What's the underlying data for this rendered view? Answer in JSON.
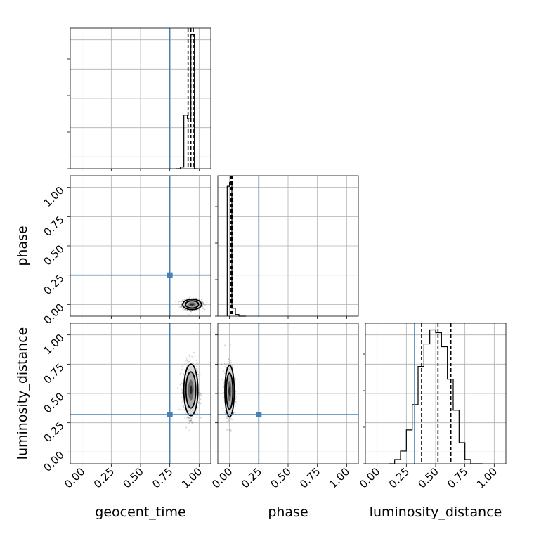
{
  "chart_data": {
    "type": "corner",
    "parameters": [
      "geocent_time",
      "phase",
      "luminosity_distance"
    ],
    "range": [
      -0.1,
      1.1
    ],
    "tick_values": [
      0.0,
      0.25,
      0.5,
      0.75,
      1.0
    ],
    "tick_labels": [
      "0.00",
      "0.25",
      "0.50",
      "0.75",
      "1.00"
    ],
    "grid": true,
    "colors": {
      "truth": "#4682b4",
      "hist": "#000000",
      "contour_fill": "#808080"
    },
    "truths": {
      "geocent_time": 0.75,
      "phase": 0.25,
      "luminosity_distance": 0.32
    },
    "diagonal": [
      {
        "parameter": "geocent_time",
        "bin_edges": [
          0.8,
          0.84,
          0.87,
          0.9,
          0.93,
          0.96,
          0.99
        ],
        "counts": [
          0,
          2,
          70,
          65,
          175,
          0
        ],
        "quantiles": [
          0.906,
          0.93,
          0.95
        ]
      },
      {
        "parameter": "phase",
        "bin_edges": [
          -0.02,
          0.0,
          0.02,
          0.05,
          0.08,
          0.14
        ],
        "counts": [
          165,
          170,
          10,
          2,
          0
        ],
        "quantiles": [
          0.013,
          0.02,
          0.027
        ]
      },
      {
        "parameter": "luminosity_distance",
        "bin_edges": [
          0.1,
          0.15,
          0.2,
          0.25,
          0.3,
          0.35,
          0.4,
          0.45,
          0.5,
          0.55,
          0.6,
          0.65,
          0.7,
          0.75,
          0.8,
          0.85,
          0.9
        ],
        "counts": [
          0,
          3,
          9,
          24,
          42,
          69,
          85,
          95,
          93,
          83,
          60,
          38,
          15,
          3,
          0,
          0
        ],
        "quantiles": [
          0.38,
          0.52,
          0.63
        ]
      }
    ],
    "panels_2d": [
      {
        "x": "geocent_time",
        "y": "phase",
        "center": [
          0.94,
          0.0
        ],
        "spread": [
          0.04,
          0.022
        ]
      },
      {
        "x": "geocent_time",
        "y": "luminosity_distance",
        "center": [
          0.93,
          0.53
        ],
        "spread": [
          0.03,
          0.11
        ]
      },
      {
        "x": "phase",
        "y": "luminosity_distance",
        "center": [
          0.0,
          0.52
        ],
        "spread": [
          0.02,
          0.11
        ]
      }
    ]
  }
}
